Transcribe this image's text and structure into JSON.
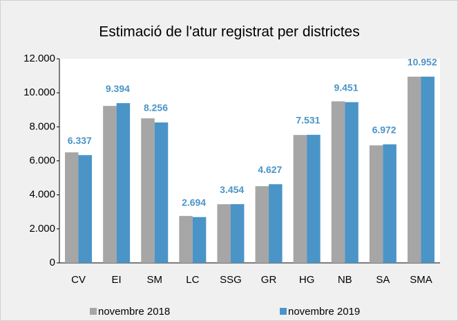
{
  "chart_data": {
    "type": "bar",
    "title": "Estimació de l'atur registrat per districtes",
    "categories": [
      "CV",
      "EI",
      "SM",
      "LC",
      "SSG",
      "GR",
      "HG",
      "NB",
      "SA",
      "SMA"
    ],
    "series": [
      {
        "name": "novembre 2018",
        "color": "#a6a6a6",
        "values": [
          6500,
          9230,
          8500,
          2760,
          3450,
          4510,
          7520,
          9500,
          6910,
          10950
        ]
      },
      {
        "name": "novembre 2019",
        "color": "#4a94c8",
        "values": [
          6337,
          9394,
          8256,
          2694,
          3454,
          4627,
          7531,
          9451,
          6972,
          10952
        ],
        "value_labels": [
          "6.337",
          "9.394",
          "8.256",
          "2.694",
          "3.454",
          "4.627",
          "7.531",
          "9.451",
          "6.972",
          "10.952"
        ]
      }
    ],
    "ylim": [
      0,
      12000
    ],
    "yticks": [
      0,
      {
        "value": 2000,
        "label": "2.000"
      },
      {
        "value": 4000,
        "label": "4.000"
      },
      {
        "value": 6000,
        "label": "6.000"
      },
      {
        "value": 8000,
        "label": "8.000"
      },
      {
        "value": 10000,
        "label": "10.000"
      },
      {
        "value": 12000,
        "label": "12.000"
      }
    ],
    "grid": false
  }
}
